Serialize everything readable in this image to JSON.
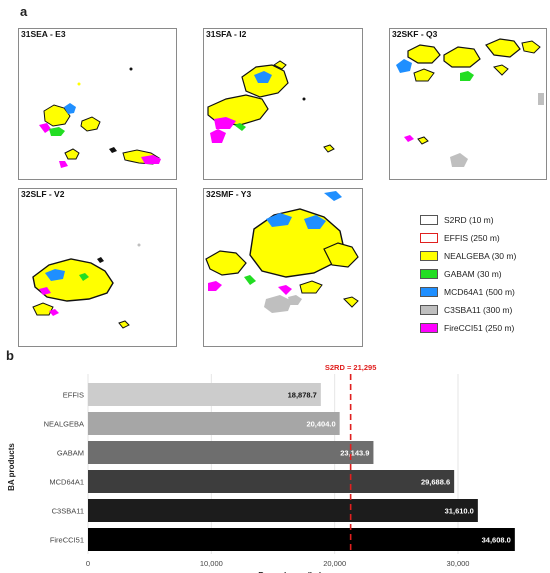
{
  "figure": {
    "panel_a_label": "a",
    "panel_b_label": "b"
  },
  "tiles": [
    {
      "title": "31SEA - E3"
    },
    {
      "title": "31SFA - I2"
    },
    {
      "title": "32SKF - Q3"
    },
    {
      "title": "32SLF - V2"
    },
    {
      "title": "32SMF - Y3"
    }
  ],
  "legend": {
    "items": [
      {
        "label": "S2RD (10 m)",
        "fill": "#ffffff",
        "stroke": "#555555"
      },
      {
        "label": "EFFIS (250 m)",
        "fill": "#ffffff",
        "stroke": "#e0201f"
      },
      {
        "label": "NEALGEBA (30 m)",
        "fill": "#ffff00",
        "stroke": "#555555"
      },
      {
        "label": "GABAM (30 m)",
        "fill": "#22dd22",
        "stroke": "#555555"
      },
      {
        "label": "MCD64A1 (500 m)",
        "fill": "#1f8fff",
        "stroke": "#555555"
      },
      {
        "label": "C3SBA11 (300 m)",
        "fill": "#bfbfbf",
        "stroke": "#555555"
      },
      {
        "label": "FireCCI51 (250 m)",
        "fill": "#ff00ff",
        "stroke": "#555555"
      }
    ]
  },
  "chart_data": {
    "type": "bar",
    "orientation": "horizontal",
    "categories": [
      "EFFIS",
      "NEALGEBA",
      "GABAM",
      "MCD64A1",
      "C3SBA11",
      "FireCCI51"
    ],
    "values": [
      18878.7,
      20404.0,
      23143.9,
      29688.6,
      31610.0,
      34608.0
    ],
    "value_labels": [
      "18,878.7",
      "20,404.0",
      "23,143.9",
      "29,688.6",
      "31,610.0",
      "34,608.0"
    ],
    "bar_colors": [
      "#cccccc",
      "#a6a6a6",
      "#6e6e6e",
      "#3d3d3d",
      "#1c1c1c",
      "#000000"
    ],
    "label_colors": [
      "#111111",
      "#ffffff",
      "#ffffff",
      "#ffffff",
      "#ffffff",
      "#ffffff"
    ],
    "xlabel": "Burned area (ha)",
    "ylabel": "BA products",
    "xlim": [
      0,
      36000
    ],
    "xticks": [
      0,
      10000,
      20000,
      30000
    ],
    "xtick_labels": [
      "0",
      "10,000",
      "20,000",
      "30,000"
    ],
    "reference": {
      "label": "S2RD = 21,295",
      "value": 21295,
      "color": "#e0201f"
    },
    "grid": true
  }
}
